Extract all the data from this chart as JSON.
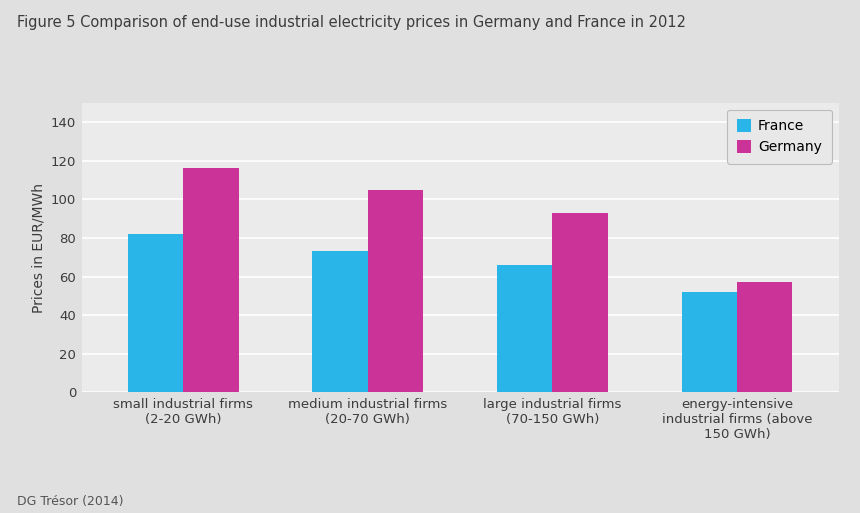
{
  "title": "Figure 5 Comparison of end-use industrial electricity prices in Germany and France in 2012",
  "categories": [
    "small industrial firms\n(2-20 GWh)",
    "medium industrial firms\n(20-70 GWh)",
    "large industrial firms\n(70-150 GWh)",
    "energy-intensive\nindustrial firms (above\n150 GWh)"
  ],
  "france_values": [
    82,
    73,
    66,
    52
  ],
  "germany_values": [
    116,
    105,
    93,
    57
  ],
  "france_color": "#29B5E8",
  "germany_color": "#CC3399",
  "ylabel": "Prices in EUR/MWh",
  "ylim": [
    0,
    150
  ],
  "yticks": [
    0,
    20,
    40,
    60,
    80,
    100,
    120,
    140
  ],
  "legend_labels": [
    "France",
    "Germany"
  ],
  "footnote": "DG Trésor (2014)",
  "outer_background": "#E0E0E0",
  "plot_background": "#EBEBEB",
  "title_fontsize": 10.5,
  "ylabel_fontsize": 10,
  "tick_fontsize": 9.5,
  "legend_fontsize": 10,
  "footnote_fontsize": 9,
  "bar_width": 0.3,
  "title_color": "#3C3C3C",
  "tick_color": "#3C3C3C",
  "footnote_color": "#555555",
  "grid_color": "#FFFFFF",
  "legend_bg": "#E8E8E8",
  "legend_edge": "#BBBBBB"
}
